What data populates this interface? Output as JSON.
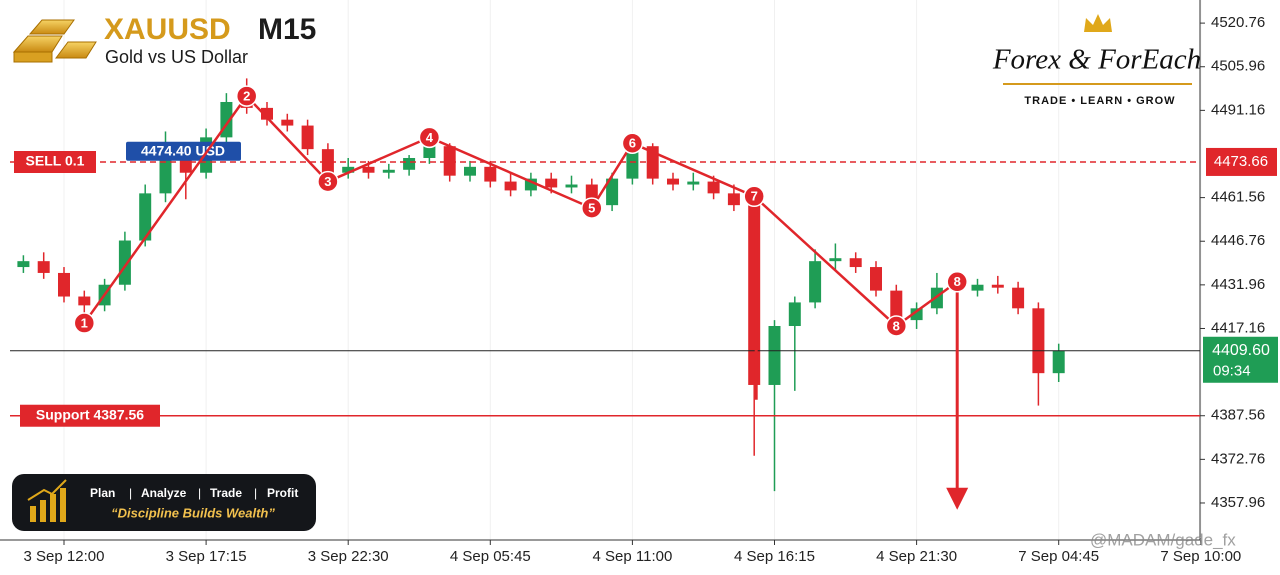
{
  "chart_data": {
    "type": "candlestick",
    "title": "XAUUSD",
    "timeframe": "M15",
    "subtitle": "Gold vs US Dollar",
    "categories": [
      null,
      null,
      "3 Sep 12:00",
      null,
      null,
      null,
      null,
      null,
      null,
      "3 Sep 17:15",
      null,
      null,
      null,
      null,
      null,
      null,
      "3 Sep 22:30",
      null,
      null,
      null,
      null,
      null,
      null,
      "4 Sep 05:45",
      null,
      null,
      null,
      null,
      null,
      null,
      "4 Sep 11:00",
      null,
      null,
      null,
      null,
      null,
      null,
      "4 Sep 16:15",
      null,
      null,
      null,
      null,
      null,
      null,
      "4 Sep 21:30",
      null,
      null,
      null,
      null,
      null,
      null,
      "7 Sep 04:45",
      null,
      null,
      null,
      null,
      null,
      null,
      "7 Sep 10:00"
    ],
    "open": [
      4438,
      4440,
      4436,
      4428,
      4425,
      4432,
      4447,
      4463,
      4478,
      4470,
      4482,
      4494,
      4492,
      4488,
      4486,
      4478,
      4470,
      4472,
      4470,
      4471,
      4475,
      4479,
      4469,
      4472,
      4467,
      4464,
      4468,
      4465,
      4466,
      4459,
      4468,
      4479,
      4468,
      4466,
      4467,
      4463,
      4459,
      4398,
      4418,
      4426,
      4440,
      4441,
      4438,
      4430,
      4420,
      4424,
      4431,
      4430,
      4432,
      4431,
      4424,
      4402,
      null,
      null,
      null,
      null,
      null,
      null,
      null
    ],
    "high": [
      4442,
      4443,
      4438,
      4430,
      4434,
      4450,
      4466,
      4484,
      4480,
      4485,
      4497,
      4502,
      4494,
      4490,
      4488,
      4480,
      4475,
      4474,
      4473,
      4476,
      4482,
      4480,
      4474,
      4474,
      4470,
      4470,
      4470,
      4469,
      4468,
      4470,
      4482,
      4480,
      4470,
      4470,
      4469,
      4466,
      4461,
      4420,
      4428,
      4444,
      4446,
      4443,
      4440,
      4432,
      4426,
      4436,
      4434,
      4434,
      4435,
      4433,
      4426,
      4412,
      null,
      null,
      null,
      null,
      null,
      null,
      null
    ],
    "low": [
      4436,
      4434,
      4426,
      4418,
      4423,
      4430,
      4445,
      4460,
      4461,
      4468,
      4479,
      4490,
      4486,
      4484,
      4476,
      4467,
      4468,
      4468,
      4468,
      4469,
      4473,
      4467,
      4467,
      4465,
      4462,
      4462,
      4463,
      4463,
      4457,
      4457,
      4466,
      4466,
      4464,
      4464,
      4461,
      4457,
      4374,
      4362,
      4396,
      4424,
      4437,
      4436,
      4428,
      4418,
      4417,
      4422,
      4427,
      4428,
      4429,
      4422,
      4391,
      4399,
      null,
      null,
      null,
      null,
      null,
      null,
      null
    ],
    "close": [
      4440,
      4436,
      4428,
      4425,
      4432,
      4447,
      4463,
      4478,
      4470,
      4482,
      4494,
      4492,
      4488,
      4486,
      4478,
      4470,
      4472,
      4470,
      4471,
      4475,
      4479,
      4469,
      4472,
      4467,
      4464,
      4468,
      4465,
      4466,
      4459,
      4468,
      4479,
      4468,
      4466,
      4467,
      4463,
      4459,
      4398,
      4418,
      4426,
      4440,
      4441,
      4438,
      4430,
      4420,
      4424,
      4431,
      4430,
      4432,
      4431,
      4424,
      4402,
      4409.6,
      null,
      null,
      null,
      null,
      null,
      null,
      null
    ],
    "up_color": "#1f9d55",
    "down_color": "#e0262b",
    "ylim": [
      4345.4,
      4528.6
    ],
    "yticks": [
      4357.96,
      4372.76,
      4387.56,
      4417.16,
      4431.96,
      4446.76,
      4461.56,
      4491.16,
      4505.96,
      4520.76
    ],
    "grid": true,
    "sell": {
      "value": 4473.66,
      "label": "SELL 0.1",
      "entry": {
        "value": 4474.4,
        "label": "4474.40 USD"
      }
    },
    "support": {
      "value": 4387.56,
      "label": "Support 4387.56"
    },
    "current": {
      "value": 4409.6,
      "label": "4409.60",
      "countdown": "09:34"
    },
    "pattern_color": "#e0262b",
    "pattern": [
      {
        "label": "1",
        "x": 3,
        "price": 4419
      },
      {
        "label": "2",
        "x": 11,
        "price": 4496
      },
      {
        "label": "3",
        "x": 15,
        "price": 4467
      },
      {
        "label": "4",
        "x": 20,
        "price": 4482
      },
      {
        "label": "5",
        "x": 28,
        "price": 4458
      },
      {
        "label": "6",
        "x": 30,
        "price": 4480
      },
      {
        "label": "7",
        "x": 36,
        "price": 4462
      },
      {
        "label": "8",
        "x": 43,
        "price": 4418
      },
      {
        "label": "8",
        "x": 46,
        "price": 4433
      }
    ],
    "drop_from_7": 4393,
    "arrow_target": 4357
  },
  "branding": {
    "name": "Forex & ForEach",
    "tagline": "TRADE • LEARN • GROW",
    "steps": [
      "Plan",
      "Analyze",
      "Trade",
      "Profit"
    ],
    "motto": "“Discipline Builds Wealth”",
    "watermark": "@MADAM/gade_fx"
  }
}
